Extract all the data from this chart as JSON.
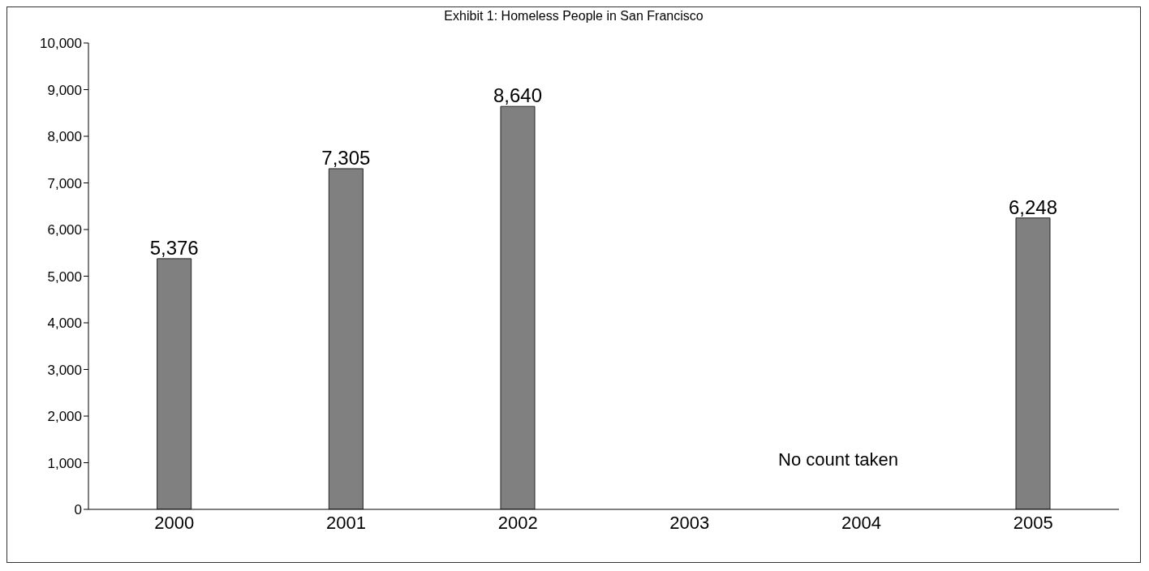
{
  "chart_data": {
    "type": "bar",
    "title": "Exhibit 1: Homeless People in San Francisco",
    "categories": [
      "2000",
      "2001",
      "2002",
      "2003",
      "2004",
      "2005"
    ],
    "values": [
      5376,
      7305,
      8640,
      null,
      null,
      6248
    ],
    "color": "#808080",
    "ylim": [
      0,
      10000
    ],
    "yticks": [
      {
        "value": 0,
        "label": "0"
      },
      {
        "value": 1000,
        "label": "1,000"
      },
      {
        "value": 2000,
        "label": "2,000"
      },
      {
        "value": 3000,
        "label": "3,000"
      },
      {
        "value": 4000,
        "label": "4,000"
      },
      {
        "value": 5000,
        "label": "5,000"
      },
      {
        "value": 6000,
        "label": "6,000"
      },
      {
        "value": 7000,
        "label": "7,000"
      },
      {
        "value": 8000,
        "label": "8,000"
      },
      {
        "value": 9000,
        "label": "9,000"
      },
      {
        "value": 10000,
        "label": "10,000"
      }
    ],
    "value_labels": [
      "5,376",
      "7,305",
      "8,640",
      null,
      null,
      "6,248"
    ],
    "annotations": [
      "No count taken"
    ],
    "grid": false
  }
}
